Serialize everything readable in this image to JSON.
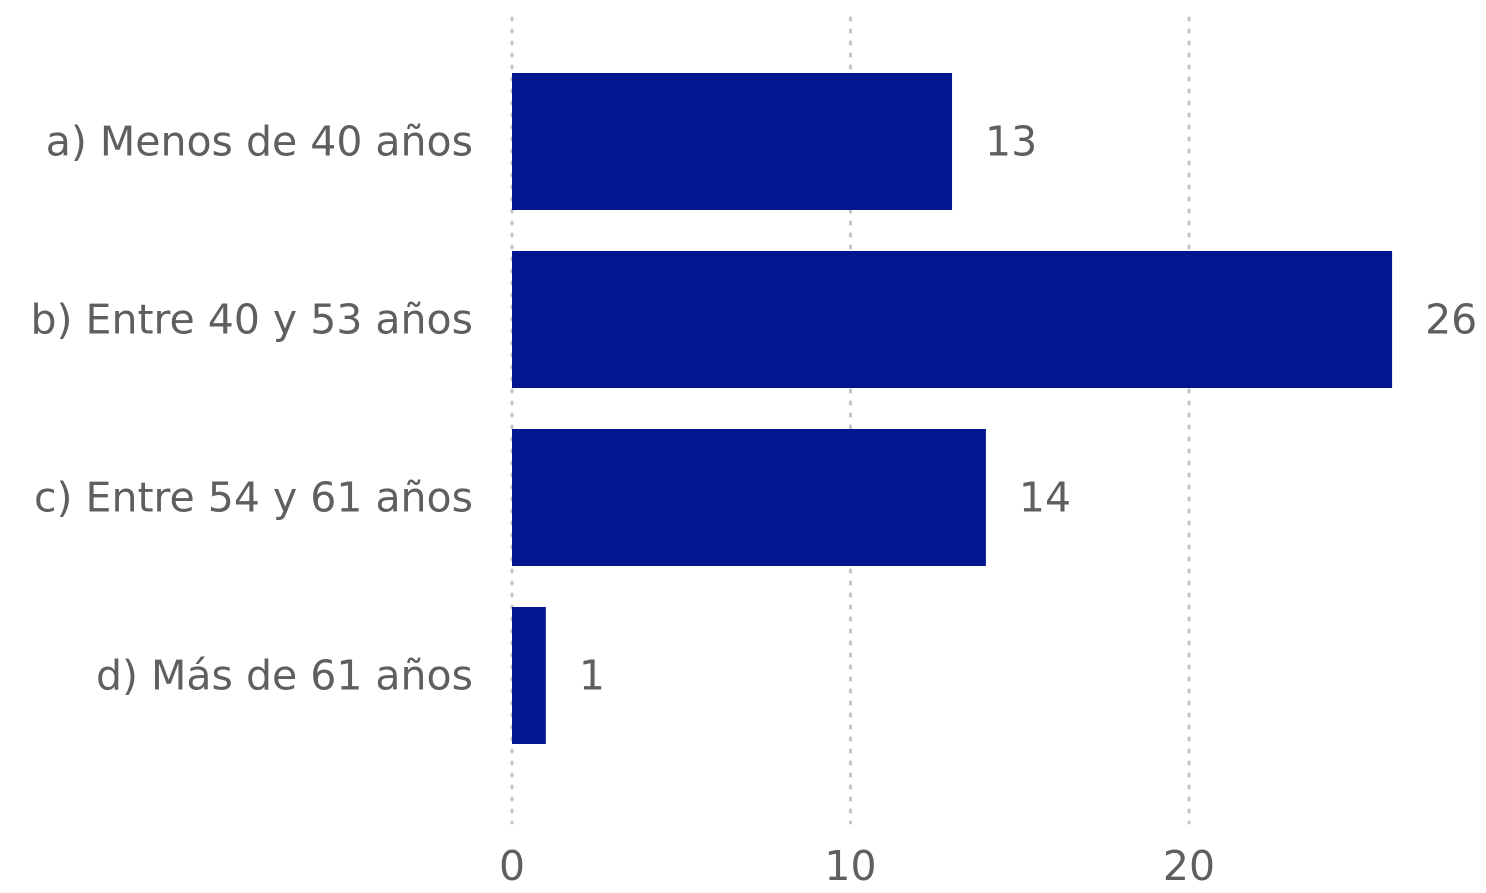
{
  "chart_data": {
    "type": "bar",
    "orientation": "horizontal",
    "categories": [
      "a) Menos de 40 años",
      "b) Entre 40 y 53 años",
      "c) Entre 54 y 61 años",
      "d) Más de 61 años"
    ],
    "values": [
      13,
      26,
      14,
      1
    ],
    "data_labels": [
      "13",
      "26",
      "14",
      "1"
    ],
    "x_ticks": [
      0,
      10,
      20
    ],
    "x_tick_labels": [
      "0",
      "10",
      "20"
    ],
    "xlim": [
      0,
      26
    ],
    "grid": true,
    "legend": "none",
    "bar_color": "#02178f",
    "text_color": "#5f5f5f",
    "grid_color": "#c4c4c4"
  }
}
